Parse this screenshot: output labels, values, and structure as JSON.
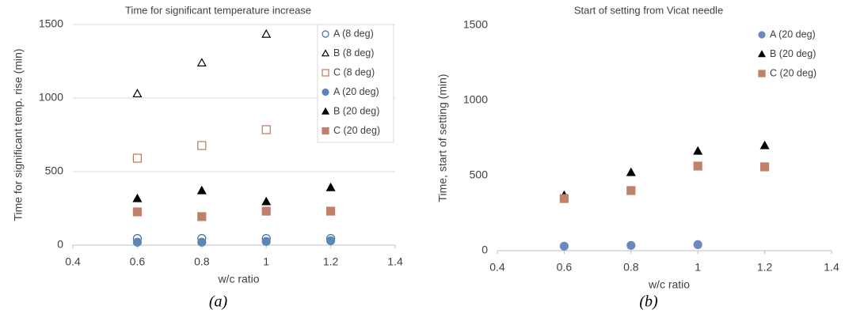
{
  "chart_data": [
    {
      "type": "scatter",
      "title": "Time for significant temperature increase",
      "x_label": "w/c ratio",
      "y_label": "Time for significant temp. rise (min)",
      "caption": "(a)",
      "xlim": [
        0.4,
        1.4
      ],
      "xticks": [
        0.4,
        0.6,
        0.8,
        1,
        1.2,
        1.4
      ],
      "ylim": [
        0,
        1500
      ],
      "yticks": [
        0,
        500,
        1000,
        1500
      ],
      "grid": true,
      "legend": "right",
      "x": [
        0.6,
        0.8,
        1,
        1.2
      ],
      "series": [
        {
          "name": "A (8 deg)",
          "color": "#41719c",
          "marker": "circle",
          "filled": false,
          "values": [
            45,
            45,
            45,
            45
          ]
        },
        {
          "name": "B (8 deg)",
          "color": "#000000",
          "marker": "triangle",
          "filled": false,
          "values": [
            1030,
            1240,
            1435,
            null
          ]
        },
        {
          "name": "C (8 deg)",
          "color": "#c0755a",
          "marker": "square",
          "filled": false,
          "values": [
            591,
            677,
            785,
            876
          ]
        },
        {
          "name": "A (20 deg)",
          "color": "#5b86b5",
          "marker": "circle",
          "filled": true,
          "values": [
            20,
            20,
            25,
            30
          ]
        },
        {
          "name": "B (20 deg)",
          "color": "#000000",
          "marker": "triangle",
          "filled": true,
          "values": [
            317,
            371,
            296,
            392
          ]
        },
        {
          "name": "C (20 deg)",
          "color": "#c0806a",
          "marker": "square",
          "filled": true,
          "values": [
            226,
            194,
            231,
            231
          ]
        }
      ]
    },
    {
      "type": "scatter",
      "title": "Start of setting from Vicat needle",
      "x_label": "w/c ratio",
      "y_label": "Time, start of setting (min)",
      "caption": "(b)",
      "xlim": [
        0.4,
        1.4
      ],
      "xticks": [
        0.4,
        0.6,
        0.8,
        1,
        1.2,
        1.4
      ],
      "ylim": [
        0,
        1500
      ],
      "yticks": [
        0,
        500,
        1000,
        1500
      ],
      "grid": false,
      "legend": "right",
      "x": [
        0.6,
        0.8,
        1,
        1.2
      ],
      "series": [
        {
          "name": "A (20 deg)",
          "color": "#6a89bd",
          "marker": "circle",
          "filled": true,
          "values": [
            30,
            35,
            40,
            null
          ]
        },
        {
          "name": "B (20 deg)",
          "color": "#000000",
          "marker": "triangle",
          "filled": true,
          "values": [
            368,
            521,
            663,
            700
          ]
        },
        {
          "name": "C (20 deg)",
          "color": "#c0806a",
          "marker": "square",
          "filled": true,
          "values": [
            347,
            400,
            563,
            558
          ]
        }
      ]
    }
  ]
}
